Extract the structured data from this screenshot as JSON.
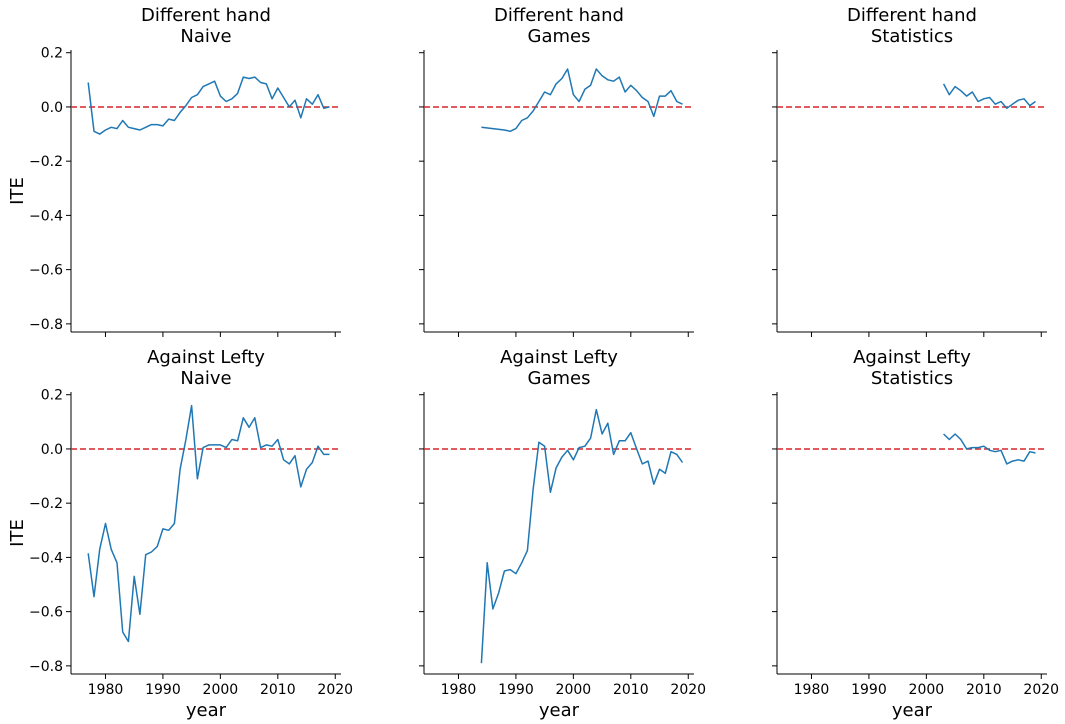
{
  "chart_data": {
    "type": "line",
    "layout": {
      "rows": 2,
      "cols": 3,
      "sharex": true,
      "sharey": true
    },
    "xlim": [
      1974,
      2021
    ],
    "ylim": [
      -0.83,
      0.21
    ],
    "xticks": [
      1980,
      1990,
      2000,
      2010,
      2020
    ],
    "yticks": [
      0.2,
      0.0,
      -0.2,
      -0.4,
      -0.6,
      -0.8
    ],
    "ytick_labels": [
      "0.2",
      "0.0",
      "−0.2",
      "−0.4",
      "−0.6",
      "−0.8"
    ],
    "xlabel": "year",
    "ylabel": "ITE",
    "line_color": "#1f77b4",
    "reference_line": {
      "y": 0.0,
      "color": "#d62728",
      "style": "dashed"
    },
    "panels": [
      {
        "title_line1": "Different hand",
        "title_line2": "Naive",
        "x": [
          1977,
          1978,
          1979,
          1980,
          1981,
          1982,
          1983,
          1984,
          1985,
          1986,
          1987,
          1988,
          1989,
          1990,
          1991,
          1992,
          1993,
          1994,
          1995,
          1996,
          1997,
          1998,
          1999,
          2000,
          2001,
          2002,
          2003,
          2004,
          2005,
          2006,
          2007,
          2008,
          2009,
          2010,
          2011,
          2012,
          2013,
          2014,
          2015,
          2016,
          2017,
          2018,
          2019
        ],
        "y": [
          0.09,
          -0.09,
          -0.1,
          -0.085,
          -0.075,
          -0.08,
          -0.05,
          -0.075,
          -0.08,
          -0.085,
          -0.075,
          -0.065,
          -0.065,
          -0.07,
          -0.045,
          -0.05,
          -0.02,
          0.005,
          0.035,
          0.045,
          0.075,
          0.085,
          0.095,
          0.04,
          0.02,
          0.03,
          0.05,
          0.11,
          0.105,
          0.11,
          0.09,
          0.085,
          0.03,
          0.07,
          0.035,
          0.0,
          0.025,
          -0.04,
          0.03,
          0.01,
          0.045,
          -0.005,
          0.0
        ]
      },
      {
        "title_line1": "Different hand",
        "title_line2": "Games",
        "x": [
          1984,
          1986,
          1988,
          1989,
          1990,
          1991,
          1992,
          1993,
          1994,
          1995,
          1996,
          1997,
          1998,
          1999,
          2000,
          2001,
          2002,
          2003,
          2004,
          2005,
          2006,
          2007,
          2008,
          2009,
          2010,
          2011,
          2012,
          2013,
          2014,
          2015,
          2016,
          2017,
          2018,
          2019
        ],
        "y": [
          -0.075,
          -0.08,
          -0.085,
          -0.09,
          -0.08,
          -0.05,
          -0.04,
          -0.015,
          0.02,
          0.055,
          0.045,
          0.085,
          0.105,
          0.14,
          0.045,
          0.02,
          0.065,
          0.08,
          0.14,
          0.115,
          0.1,
          0.095,
          0.11,
          0.055,
          0.08,
          0.06,
          0.035,
          0.02,
          -0.035,
          0.04,
          0.04,
          0.06,
          0.02,
          0.01
        ]
      },
      {
        "title_line1": "Different hand",
        "title_line2": "Statistics",
        "x": [
          2003,
          2004,
          2005,
          2006,
          2007,
          2008,
          2009,
          2010,
          2011,
          2012,
          2013,
          2014,
          2015,
          2016,
          2017,
          2018,
          2019
        ],
        "y": [
          0.085,
          0.045,
          0.075,
          0.06,
          0.04,
          0.055,
          0.02,
          0.03,
          0.035,
          0.01,
          0.02,
          -0.005,
          0.01,
          0.025,
          0.03,
          0.005,
          0.02
        ]
      },
      {
        "title_line1": "Against Lefty",
        "title_line2": "Naive",
        "x": [
          1977,
          1978,
          1979,
          1980,
          1981,
          1982,
          1983,
          1984,
          1985,
          1986,
          1987,
          1988,
          1989,
          1990,
          1991,
          1992,
          1993,
          1994,
          1995,
          1996,
          1997,
          1998,
          1999,
          2000,
          2001,
          2002,
          2003,
          2004,
          2005,
          2006,
          2007,
          2008,
          2009,
          2010,
          2011,
          2012,
          2013,
          2014,
          2015,
          2016,
          2017,
          2018,
          2019
        ],
        "y": [
          -0.385,
          -0.545,
          -0.37,
          -0.275,
          -0.37,
          -0.42,
          -0.675,
          -0.71,
          -0.47,
          -0.61,
          -0.39,
          -0.38,
          -0.36,
          -0.295,
          -0.3,
          -0.275,
          -0.075,
          0.035,
          0.16,
          -0.11,
          0.005,
          0.015,
          0.015,
          0.015,
          0.005,
          0.035,
          0.03,
          0.115,
          0.08,
          0.115,
          0.005,
          0.015,
          0.01,
          0.035,
          -0.04,
          -0.055,
          -0.025,
          -0.14,
          -0.075,
          -0.05,
          0.01,
          -0.02,
          -0.02
        ]
      },
      {
        "title_line1": "Against Lefty",
        "title_line2": "Games",
        "x": [
          1984,
          1985,
          1986,
          1987,
          1988,
          1989,
          1990,
          1991,
          1992,
          1993,
          1994,
          1995,
          1996,
          1997,
          1998,
          1999,
          2000,
          2001,
          2002,
          2003,
          2004,
          2005,
          2006,
          2007,
          2008,
          2009,
          2010,
          2011,
          2012,
          2013,
          2014,
          2015,
          2016,
          2017,
          2018,
          2019
        ],
        "y": [
          -0.79,
          -0.42,
          -0.59,
          -0.53,
          -0.45,
          -0.445,
          -0.46,
          -0.42,
          -0.375,
          -0.15,
          0.025,
          0.01,
          -0.16,
          -0.07,
          -0.03,
          -0.005,
          -0.04,
          0.005,
          0.01,
          0.04,
          0.145,
          0.055,
          0.095,
          -0.02,
          0.03,
          0.03,
          0.06,
          0.0,
          -0.055,
          -0.045,
          -0.13,
          -0.075,
          -0.09,
          -0.01,
          -0.02,
          -0.05
        ]
      },
      {
        "title_line1": "Against Lefty",
        "title_line2": "Statistics",
        "x": [
          2003,
          2004,
          2005,
          2006,
          2007,
          2008,
          2009,
          2010,
          2011,
          2012,
          2013,
          2014,
          2015,
          2016,
          2017,
          2018,
          2019
        ],
        "y": [
          0.055,
          0.035,
          0.055,
          0.035,
          0.0,
          0.005,
          0.005,
          0.01,
          -0.005,
          -0.01,
          -0.005,
          -0.055,
          -0.045,
          -0.04,
          -0.045,
          -0.01,
          -0.015
        ]
      }
    ]
  }
}
